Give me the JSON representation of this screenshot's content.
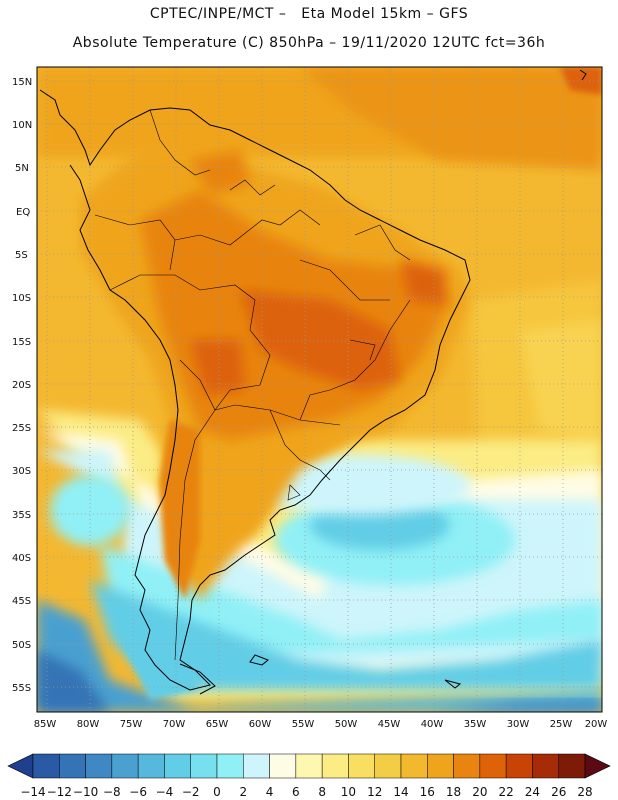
{
  "header": {
    "line1": "CPTEC/INPE/MCT –   Eta Model 15km – GFS",
    "line2": "Absolute Temperature (C) 850hPa – 19/11/2020 12UTC fct=36h"
  },
  "axes": {
    "lat_labels": [
      "15N",
      "10N",
      "5N",
      "EQ",
      "5S",
      "10S",
      "15S",
      "20S",
      "25S",
      "30S",
      "35S",
      "40S",
      "45S",
      "50S",
      "55S"
    ],
    "lon_labels": [
      "85W",
      "80W",
      "75W",
      "70W",
      "65W",
      "60W",
      "55W",
      "50W",
      "45W",
      "40W",
      "35W",
      "30W",
      "25W",
      "20W"
    ]
  },
  "colorbar": {
    "labels": [
      "-14",
      "-12",
      "-10",
      "-8",
      "-6",
      "-4",
      "-2",
      "0",
      "2",
      "4",
      "6",
      "8",
      "10",
      "12",
      "14",
      "16",
      "18",
      "20",
      "22",
      "24",
      "26",
      "28"
    ],
    "colors": [
      "#1f3f8f",
      "#2a5aa3",
      "#3473b5",
      "#3f88c4",
      "#4aa0d0",
      "#56b8dc",
      "#62cde6",
      "#76e0ee",
      "#90f0f6",
      "#cdf5fb",
      "#fffce6",
      "#fdf7b0",
      "#fbec84",
      "#f8de61",
      "#f4cd46",
      "#f2b92e",
      "#efa41d",
      "#e88410",
      "#dd6208",
      "#c74406",
      "#a52c06",
      "#7e1a08",
      "#5a0a10"
    ]
  }
}
